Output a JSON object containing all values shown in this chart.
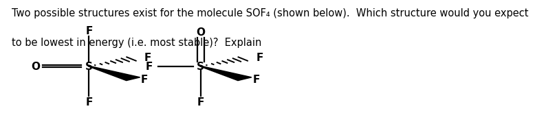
{
  "title_line1": "Two possible structures exist for the molecule SOF₄ (shown below).  Which structure would you expect",
  "title_line2": "to be lowest in energy (i.e. most stable)?  Explain",
  "font_size_title": 10.5,
  "bg_color": "#ffffff",
  "text_color": "#000000",
  "lw": 1.6,
  "label_fontsize": 11,
  "s1": {
    "sx": 0.195,
    "sy": 0.46
  },
  "s2": {
    "sx": 0.46,
    "sy": 0.46
  }
}
